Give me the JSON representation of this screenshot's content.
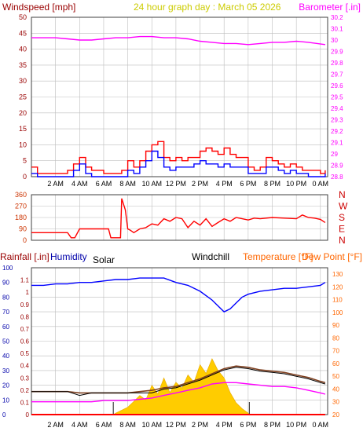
{
  "colors": {
    "background": "#ffffff",
    "frame": "#404040",
    "grid": "#bdbdbd",
    "wind_gust": "#ff0000",
    "wind_avg": "#0000ff",
    "barometer": "#ff00ff",
    "direction": "#ff0000",
    "humidity": "#0000ff",
    "temperature": "#7f4020",
    "dew_point": "#ff00ff",
    "windchill": "#000000",
    "solar": "#ffcc00",
    "rainfall": "#ff0000",
    "left_axis_label": "#990000",
    "humidity_label": "#0000aa",
    "right_axis_label": "#ff6600",
    "title": "#cccc00",
    "solar_label": "#000000",
    "direction_ticks": "#cc3300"
  },
  "chart_data": [
    {
      "type": "line",
      "panel": "wind",
      "title": "24 hour graph day : March 05 2026",
      "left_axis_label": "Windspeed [mph]",
      "right_axis_label": "Barometer [.in]",
      "x_tick_labels": [
        "2 AM",
        "4 AM",
        "6 AM",
        "8 AM",
        "10 AM",
        "12 PM",
        "2 PM",
        "4 PM",
        "6 PM",
        "8 PM",
        "10 PM",
        "0 AM"
      ],
      "x_ticks": [
        2,
        4,
        6,
        8,
        10,
        12,
        14,
        16,
        18,
        20,
        22,
        24
      ],
      "xlim": [
        0,
        24.6
      ],
      "left_ylim": [
        0,
        50
      ],
      "left_ticks": [
        0,
        5,
        10,
        15,
        20,
        25,
        30,
        35,
        40,
        45,
        50
      ],
      "right_ylim": [
        28.8,
        30.2
      ],
      "right_ticks": [
        "28.8",
        "28.9",
        "29",
        "29.1",
        "29.2",
        "29.3",
        "29.4",
        "29.5",
        "29.6",
        "29.7",
        "29.8",
        "29.9",
        "30",
        "30.1",
        "30.2"
      ],
      "grid": true,
      "series": [
        {
          "name": "Barometer",
          "axis": "right",
          "x": [
            0,
            1,
            2,
            3,
            4,
            5,
            6,
            7,
            8,
            9,
            10,
            11,
            12,
            13,
            14,
            15,
            16,
            17,
            18,
            19,
            20,
            21,
            22,
            23,
            24.4
          ],
          "values": [
            30.02,
            30.02,
            30.02,
            30.01,
            30,
            30,
            30.01,
            30.02,
            30.02,
            30.03,
            30.03,
            30.02,
            30.02,
            30.01,
            29.99,
            29.98,
            29.97,
            29.97,
            29.96,
            29.97,
            29.98,
            29.98,
            29.99,
            29.98,
            29.96
          ]
        },
        {
          "name": "Wind gust",
          "axis": "left",
          "x": [
            0,
            0.5,
            1,
            1.5,
            2,
            2.5,
            3,
            3.5,
            4,
            4.5,
            5,
            5.5,
            6,
            6.5,
            7,
            7.5,
            8,
            8.5,
            9,
            9.5,
            10,
            10.5,
            11,
            11.5,
            12,
            12.5,
            13,
            13.5,
            14,
            14.5,
            15,
            15.5,
            16,
            16.5,
            17,
            17.5,
            18,
            18.5,
            19,
            19.5,
            20,
            20.5,
            21,
            21.5,
            22,
            22.5,
            23,
            23.5,
            24,
            24.4
          ],
          "values": [
            3,
            1,
            1,
            1,
            1,
            1,
            2,
            4,
            6,
            3,
            2,
            2,
            1,
            1,
            1,
            2,
            5,
            3,
            5,
            8,
            10,
            11,
            6,
            5,
            6,
            5,
            6,
            6,
            8,
            9,
            8,
            7,
            9,
            7,
            6,
            6,
            3,
            2,
            3,
            6,
            5,
            4,
            3,
            4,
            3,
            2,
            2,
            2,
            1,
            2
          ]
        },
        {
          "name": "Wind average",
          "axis": "left",
          "x": [
            0,
            0.5,
            1,
            1.5,
            2,
            2.5,
            3,
            3.5,
            4,
            4.5,
            5,
            5.5,
            6,
            6.5,
            7,
            7.5,
            8,
            8.5,
            9,
            9.5,
            10,
            10.5,
            11,
            11.5,
            12,
            12.5,
            13,
            13.5,
            14,
            14.5,
            15,
            15.5,
            16,
            16.5,
            17,
            17.5,
            18,
            18.5,
            19,
            19.5,
            20,
            20.5,
            21,
            21.5,
            22,
            22.5,
            23,
            23.5,
            24,
            24.4
          ],
          "values": [
            1,
            0,
            0,
            0,
            0,
            0,
            0,
            2,
            4,
            1,
            0,
            0,
            0,
            0,
            0,
            0,
            2,
            1,
            3,
            5,
            8,
            6,
            3,
            2,
            3,
            3,
            3,
            4,
            5,
            4,
            4,
            3,
            4,
            3,
            3,
            3,
            1,
            1,
            1,
            3,
            3,
            2,
            1,
            2,
            1,
            1,
            0,
            0,
            0,
            1
          ]
        }
      ]
    },
    {
      "type": "line",
      "panel": "wind_direction",
      "left_ylim": [
        0,
        360
      ],
      "left_ticks": [
        0,
        90,
        180,
        270,
        360
      ],
      "right_tick_labels": [
        "N",
        "W",
        "S",
        "E",
        "N"
      ],
      "right_tick_values": [
        360,
        270,
        180,
        90,
        0
      ],
      "grid": true,
      "series": [
        {
          "name": "Wind direction",
          "x": [
            0,
            1,
            2,
            3,
            3.3,
            3.6,
            4,
            4.5,
            5,
            5.5,
            6,
            6.4,
            6.6,
            7,
            7.4,
            7.5,
            7.8,
            8,
            8.2,
            8.5,
            9,
            9.5,
            10,
            10.5,
            11,
            11.5,
            12,
            12.5,
            13,
            13.5,
            14,
            14.5,
            15,
            15.5,
            16,
            16.5,
            17,
            17.5,
            18,
            18.5,
            19,
            20,
            21,
            22,
            22.5,
            23,
            23.5,
            24,
            24.4
          ],
          "values": [
            60,
            60,
            60,
            60,
            20,
            20,
            90,
            90,
            90,
            90,
            90,
            90,
            20,
            20,
            20,
            330,
            240,
            90,
            80,
            60,
            90,
            100,
            130,
            120,
            170,
            150,
            180,
            170,
            100,
            150,
            120,
            170,
            110,
            140,
            170,
            150,
            180,
            170,
            160,
            175,
            170,
            180,
            175,
            170,
            200,
            180,
            175,
            165,
            140
          ]
        }
      ]
    },
    {
      "type": "line",
      "panel": "temperature",
      "left_axis_label": "Rainfall [.in]",
      "left_axis_label_2": "Humidity",
      "solar_label": "Solar",
      "windchill_label": "Windchill",
      "right_axis_label": "Temperature [°F]",
      "right_axis_label_2": "Dew Point [°F]",
      "x_tick_labels": [
        "2 AM",
        "4 AM",
        "6 AM",
        "8 AM",
        "10 AM",
        "12 PM",
        "2 PM",
        "4 PM",
        "6 PM",
        "8 PM",
        "10 PM",
        "0 AM"
      ],
      "x_ticks": [
        2,
        4,
        6,
        8,
        10,
        12,
        14,
        16,
        18,
        20,
        22,
        24
      ],
      "humidity_ylim": [
        0,
        100
      ],
      "humidity_ticks": [
        0,
        10,
        20,
        30,
        40,
        50,
        60,
        70,
        80,
        90,
        100
      ],
      "rain_ylim": [
        0,
        1.2
      ],
      "rain_ticks": [
        "0",
        "0.1",
        "0.2",
        "0.3",
        "0.4",
        "0.5",
        "0.6",
        "0.7",
        "0.8",
        "0.9",
        "1",
        "1.1"
      ],
      "temp_ylim": [
        20,
        135
      ],
      "temp_ticks": [
        20,
        30,
        40,
        50,
        60,
        70,
        80,
        90,
        100,
        110,
        120,
        130
      ],
      "sunrise": 6.8,
      "sunset": 18.1,
      "grid": true,
      "series": [
        {
          "name": "Humidity",
          "axis": "humidity",
          "x": [
            0,
            1,
            2,
            3,
            4,
            5,
            6,
            7,
            8,
            9,
            10,
            11,
            12,
            13,
            14,
            15,
            15.5,
            16,
            16.5,
            17,
            17.5,
            18,
            19,
            20,
            21,
            22,
            23,
            24,
            24.4
          ],
          "values": [
            88,
            88,
            89,
            89,
            90,
            90,
            91,
            92,
            92,
            93,
            93,
            93,
            90,
            88,
            84,
            78,
            74,
            70,
            72,
            76,
            80,
            82,
            84,
            85,
            86,
            86,
            87,
            88,
            90
          ]
        },
        {
          "name": "Temperature",
          "axis": "temp",
          "x": [
            0,
            1,
            2,
            3,
            4,
            5,
            6,
            7,
            8,
            9,
            10,
            11,
            12,
            13,
            14,
            15,
            16,
            17,
            18,
            19,
            20,
            21,
            22,
            23,
            24,
            24.4
          ],
          "values": [
            38,
            38,
            38,
            38,
            37,
            37,
            37,
            37,
            37,
            38,
            39,
            41,
            42,
            45,
            48,
            52,
            56,
            58,
            57,
            55,
            54,
            53,
            51,
            49,
            46,
            45
          ]
        },
        {
          "name": "Dew Point",
          "axis": "temp",
          "x": [
            0,
            1,
            2,
            3,
            4,
            5,
            6,
            7,
            8,
            9,
            10,
            11,
            12,
            13,
            14,
            15,
            16,
            17,
            18,
            19,
            20,
            21,
            22,
            23,
            24,
            24.4
          ],
          "values": [
            30,
            30,
            30,
            30,
            30,
            30,
            31,
            31,
            31,
            32,
            33,
            35,
            37,
            39,
            41,
            44,
            45,
            45,
            44,
            43,
            42,
            42,
            41,
            39,
            37,
            36
          ]
        },
        {
          "name": "Windchill",
          "axis": "temp",
          "x": [
            0,
            1,
            2,
            3,
            4,
            5,
            6,
            7,
            8,
            9,
            10,
            11,
            12,
            13,
            14,
            15,
            16,
            17,
            18,
            19,
            20,
            21,
            22,
            23,
            24,
            24.4
          ],
          "values": [
            38,
            38,
            38,
            38,
            35,
            37,
            37,
            37,
            37,
            37,
            37,
            40,
            41,
            44,
            47,
            51,
            55,
            57,
            56,
            54,
            53,
            52,
            50,
            48,
            45,
            44
          ]
        },
        {
          "name": "Rainfall",
          "axis": "rain",
          "x": [
            0,
            24.4
          ],
          "values": [
            0,
            0
          ]
        },
        {
          "name": "Solar",
          "axis": "humidity",
          "x": [
            6.8,
            7,
            7.5,
            8,
            8.5,
            9,
            9.5,
            10,
            10.5,
            11,
            11.5,
            12,
            12.5,
            13,
            13.5,
            14,
            14.5,
            15,
            15.5,
            16,
            16.5,
            17,
            17.5,
            18,
            18.1
          ],
          "values": [
            0,
            1,
            3,
            5,
            9,
            13,
            10,
            20,
            14,
            25,
            15,
            22,
            18,
            27,
            22,
            34,
            28,
            38,
            30,
            25,
            15,
            8,
            4,
            1,
            0
          ]
        }
      ]
    }
  ]
}
